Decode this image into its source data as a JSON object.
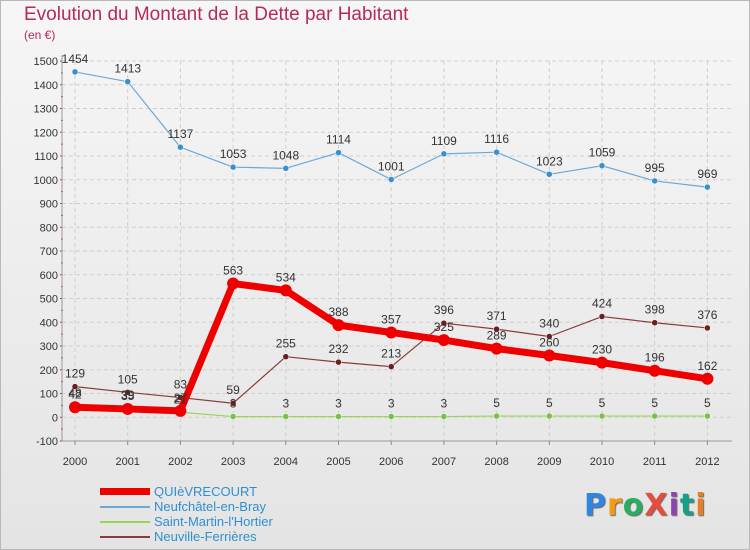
{
  "title": "Evolution du Montant de la Dette par Habitant",
  "subtitle": "(en €)",
  "logo": {
    "text": "ProXiti",
    "colors": [
      "#2e86de",
      "#f39c12",
      "#27ae60",
      "#e74c3c",
      "#8e44ad",
      "#16a085",
      "#e67e22"
    ]
  },
  "chart_data": {
    "type": "line",
    "x": [
      "2000",
      "2001",
      "2002",
      "2003",
      "2004",
      "2005",
      "2006",
      "2007",
      "2008",
      "2009",
      "2010",
      "2011",
      "2012"
    ],
    "ylim": [
      -100,
      1500
    ],
    "yticks": [
      -100,
      0,
      100,
      200,
      300,
      400,
      500,
      600,
      700,
      800,
      900,
      1000,
      1100,
      1200,
      1300,
      1400,
      1500
    ],
    "grid": true,
    "legend_position": "bottom-left",
    "series": [
      {
        "name": "Neufchâtel-en-Bray",
        "color": "#6fa8d6",
        "marker": "#3a8fd1",
        "width": 1.2,
        "values": [
          1454,
          1413,
          1137,
          1053,
          1048,
          1114,
          1001,
          1109,
          1116,
          1023,
          1059,
          995,
          969
        ],
        "labels": [
          "1454",
          "1413",
          "1137",
          "1053",
          "1048",
          "1114",
          "1001",
          "1109",
          "1116",
          "1023",
          "1059",
          "995",
          "969"
        ]
      },
      {
        "name": "Neuville-Ferrières",
        "color": "#8b3a3a",
        "marker": "#6b1f1f",
        "width": 1.2,
        "values": [
          129,
          105,
          83,
          59,
          255,
          232,
          213,
          396,
          371,
          340,
          424,
          398,
          376
        ],
        "labels": [
          "129",
          "105",
          "83",
          "59",
          "255",
          "232",
          "213",
          "396",
          "371",
          "340",
          "424",
          "398",
          "376"
        ]
      },
      {
        "name": "QUIèVRECOURT",
        "color": "#ee0000",
        "marker": "#ee0000",
        "width": 7,
        "values": [
          42,
          35,
          27,
          563,
          534,
          388,
          357,
          325,
          289,
          260,
          230,
          196,
          162
        ],
        "labels": [
          "42",
          "35",
          "27",
          "563",
          "534",
          "388",
          "357",
          "325",
          "289",
          "260",
          "230",
          "196",
          "162"
        ]
      },
      {
        "name": "Saint-Martin-l'Hortier",
        "color": "#9ad455",
        "marker": "#7ac043",
        "width": 1.2,
        "values": [
          48,
          39,
          21,
          3,
          3,
          3,
          3,
          3,
          5,
          5,
          5,
          5,
          5
        ],
        "labels": [
          "48",
          "39",
          "21",
          "3",
          "3",
          "3",
          "3",
          "3",
          "5",
          "5",
          "5",
          "5",
          "5"
        ]
      }
    ],
    "legend": [
      {
        "name": "QUIèVRECOURT",
        "color": "#ee0000",
        "thickness": 7
      },
      {
        "name": "Neufchâtel-en-Bray",
        "color": "#6fa8d6",
        "thickness": 2
      },
      {
        "name": "Saint-Martin-l'Hortier",
        "color": "#9ad455",
        "thickness": 2
      },
      {
        "name": "Neuville-Ferrières",
        "color": "#8b3a3a",
        "thickness": 2
      }
    ]
  }
}
